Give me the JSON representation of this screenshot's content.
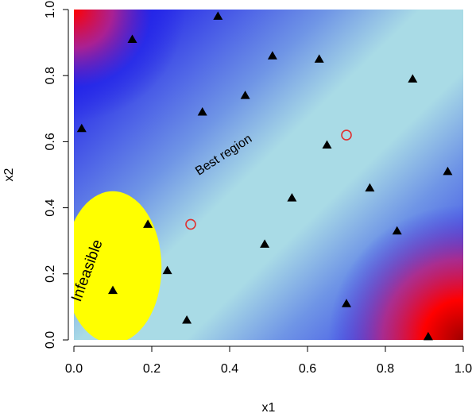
{
  "chart_data": {
    "type": "scatter",
    "title": "",
    "xlabel": "x1",
    "ylabel": "x2",
    "xlim": [
      0,
      1
    ],
    "ylim": [
      0,
      1
    ],
    "xticks": [
      "0.0",
      "0.2",
      "0.4",
      "0.6",
      "0.8",
      "1.0"
    ],
    "yticks": [
      "0.0",
      "0.2",
      "0.4",
      "0.6",
      "0.8",
      "1.0"
    ],
    "background": "filled contour (red = high, blue = medium, light blue = low)",
    "colors": {
      "high": "#ff0000",
      "mid": "#2323e8",
      "low": "#a9dbe6",
      "infeasible": "#ffff00",
      "points": "#000000",
      "best": "#e03030"
    },
    "points": [
      {
        "x": 0.02,
        "y": 0.64
      },
      {
        "x": 0.15,
        "y": 0.91
      },
      {
        "x": 0.37,
        "y": 0.98
      },
      {
        "x": 0.51,
        "y": 0.86
      },
      {
        "x": 0.63,
        "y": 0.85
      },
      {
        "x": 0.87,
        "y": 0.79
      },
      {
        "x": 0.33,
        "y": 0.69
      },
      {
        "x": 0.44,
        "y": 0.74
      },
      {
        "x": 0.65,
        "y": 0.59
      },
      {
        "x": 0.96,
        "y": 0.51
      },
      {
        "x": 0.56,
        "y": 0.43
      },
      {
        "x": 0.76,
        "y": 0.46
      },
      {
        "x": 0.19,
        "y": 0.35
      },
      {
        "x": 0.49,
        "y": 0.29
      },
      {
        "x": 0.83,
        "y": 0.33
      },
      {
        "x": 0.24,
        "y": 0.21
      },
      {
        "x": 0.1,
        "y": 0.15
      },
      {
        "x": 0.7,
        "y": 0.11
      },
      {
        "x": 0.29,
        "y": 0.06
      },
      {
        "x": 0.91,
        "y": 0.01
      }
    ],
    "best_points": [
      {
        "x": 0.3,
        "y": 0.35
      },
      {
        "x": 0.7,
        "y": 0.62
      }
    ],
    "infeasible_region": {
      "cx": 0.1,
      "cy": 0.22,
      "rx": 0.125,
      "ry": 0.23
    },
    "annotations": [
      {
        "text": "Best region",
        "x": 0.39,
        "y": 0.55,
        "angle": -33
      },
      {
        "text": "Infeasible",
        "x": 0.045,
        "y": 0.205,
        "angle": -70
      }
    ]
  }
}
